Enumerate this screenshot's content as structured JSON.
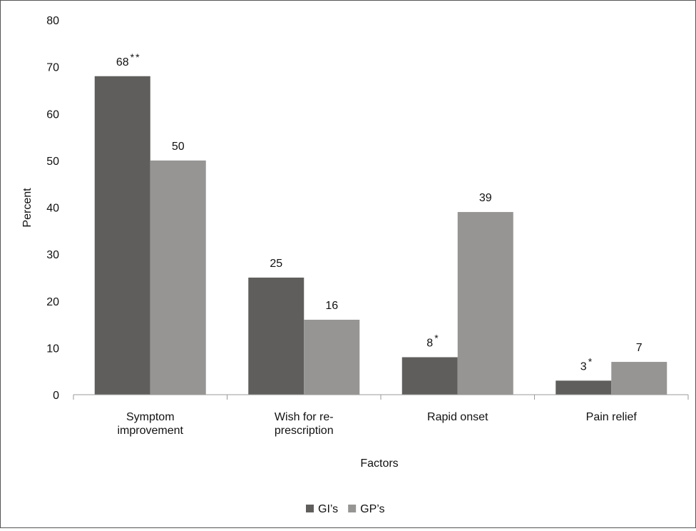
{
  "chart_data": {
    "type": "bar",
    "title": "",
    "xlabel": "Factors",
    "ylabel": "Percent",
    "ylim": [
      0,
      80
    ],
    "yticks": [
      0,
      10,
      20,
      30,
      40,
      50,
      60,
      70,
      80
    ],
    "grid": false,
    "legend_position": "bottom",
    "categories": [
      [
        "Symptom",
        "improvement"
      ],
      [
        "Wish for re-",
        "prescription"
      ],
      [
        "Rapid onset"
      ],
      [
        "Pain relief"
      ]
    ],
    "series": [
      {
        "name": "GI’s",
        "color": "#5f5e5c",
        "values": [
          68,
          25,
          8,
          3
        ],
        "labels": [
          "68",
          "25",
          "8",
          "3"
        ],
        "marks": [
          "**",
          "",
          "*",
          "*"
        ]
      },
      {
        "name": "GP’s",
        "color": "#969594",
        "values": [
          50,
          16,
          39,
          7
        ],
        "labels": [
          "50",
          "16",
          "39",
          "7"
        ],
        "marks": [
          "",
          "",
          "",
          ""
        ]
      }
    ]
  }
}
